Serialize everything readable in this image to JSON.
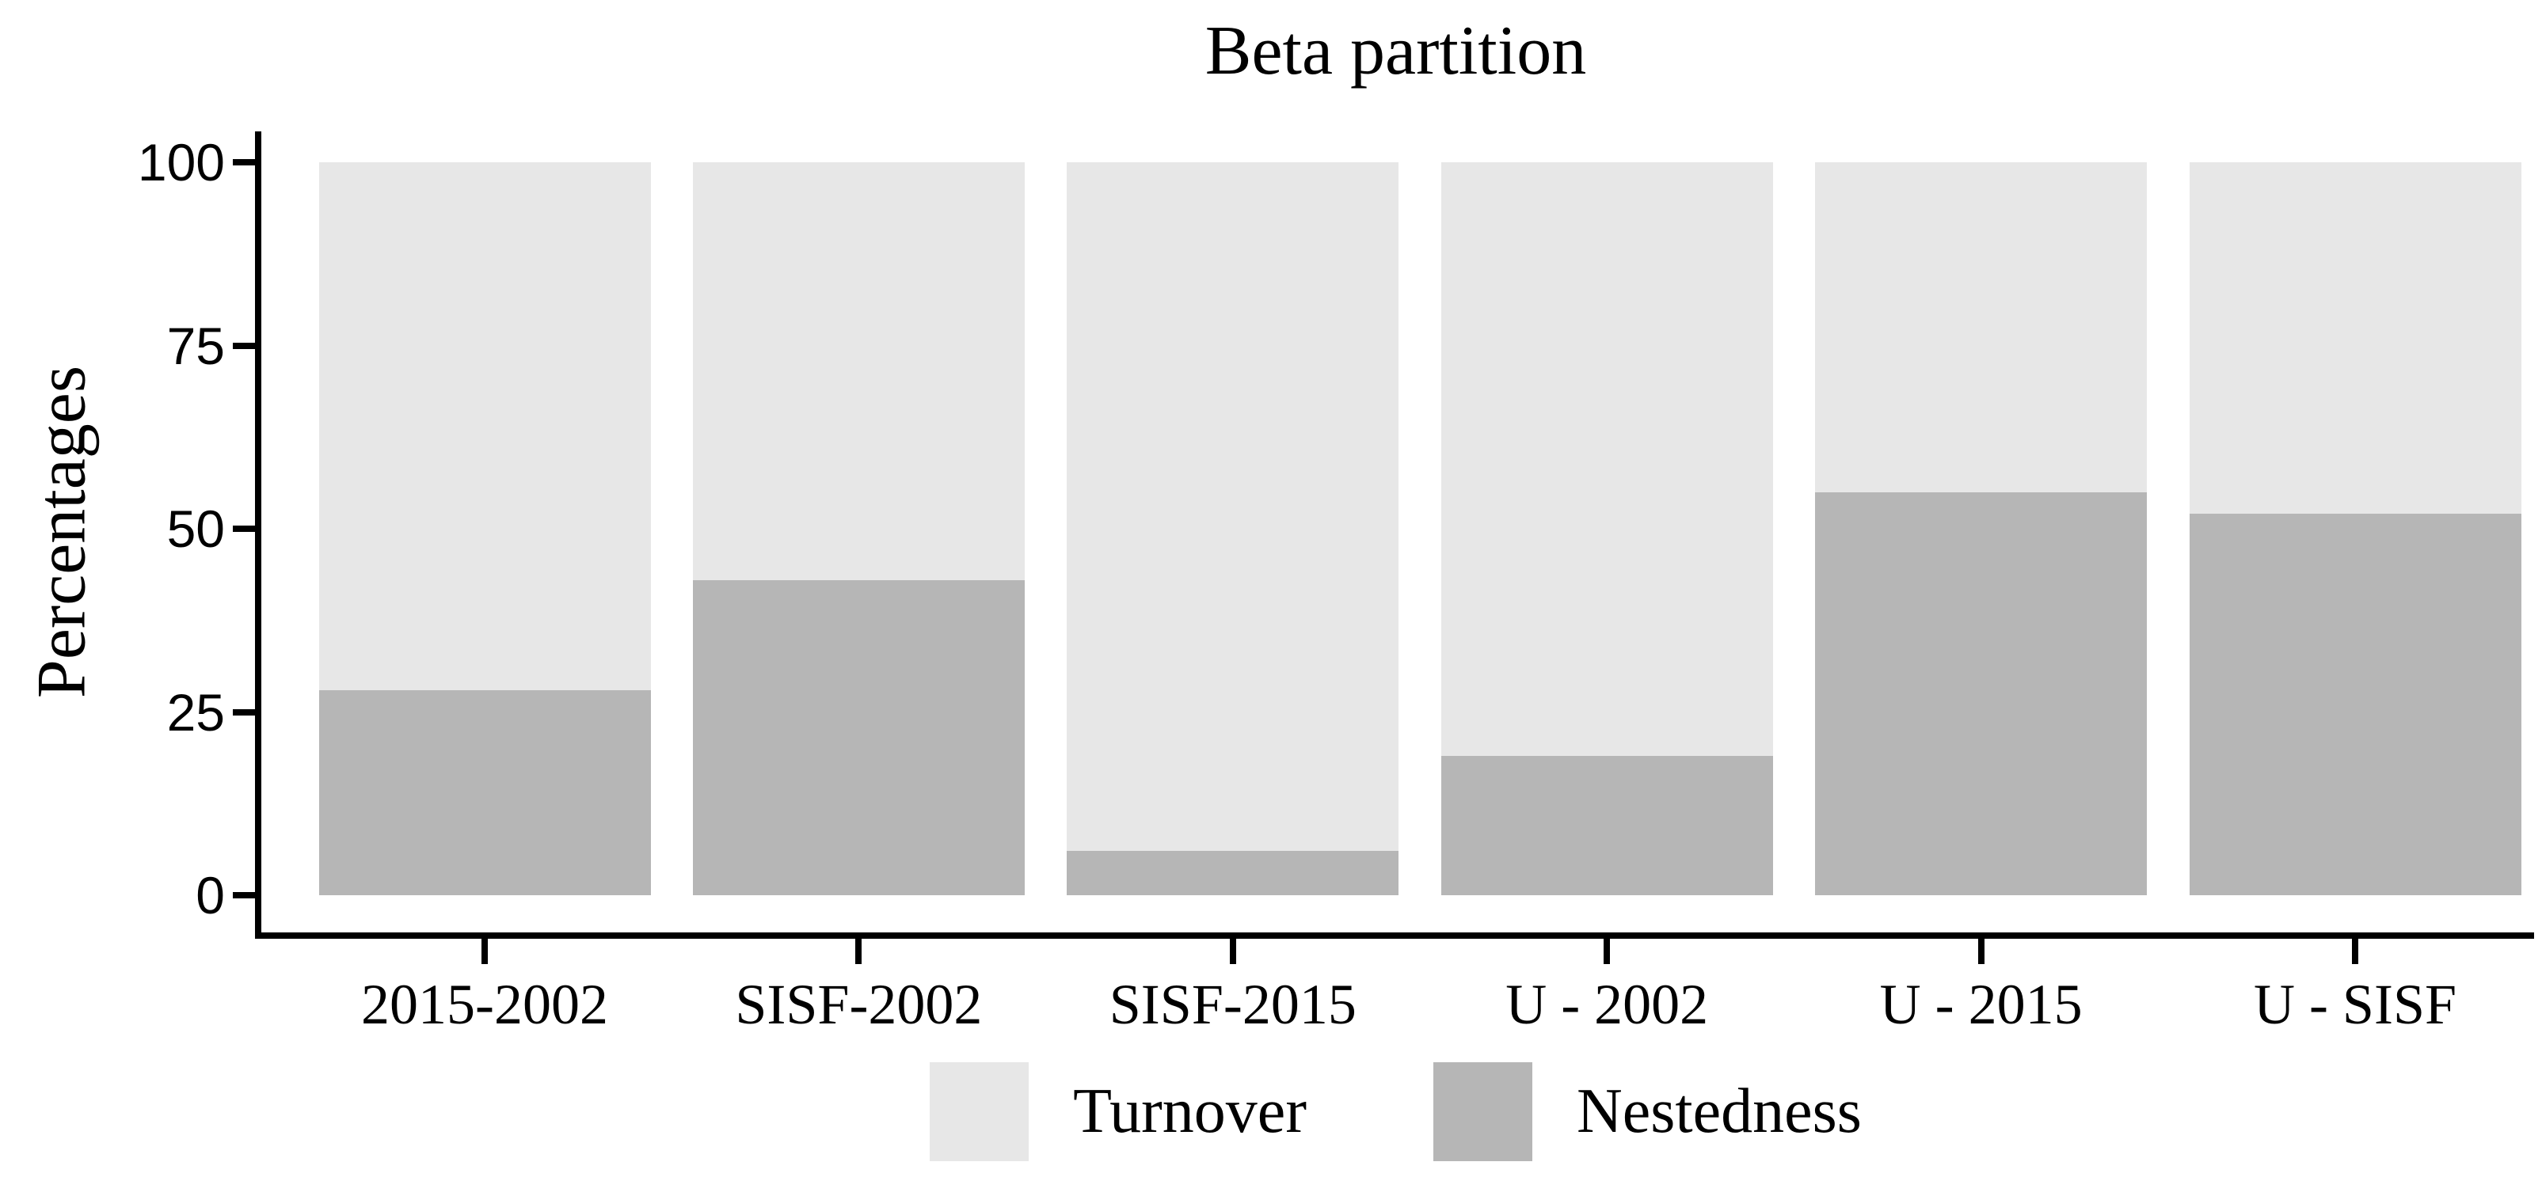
{
  "title": "Beta partition",
  "y_axis": {
    "label": "Percentages",
    "ticks": [
      "0",
      "25",
      "50",
      "75",
      "100"
    ]
  },
  "colors": {
    "turnover": "#e7e7e7",
    "nestedness": "#b6b6b6",
    "axis": "#000000",
    "background": "#ffffff"
  },
  "chart_data": {
    "type": "bar",
    "stacked": true,
    "title": "Beta partition",
    "xlabel": "",
    "ylabel": "Percentages",
    "ylim": [
      0,
      100
    ],
    "yticks": [
      0,
      25,
      50,
      75,
      100
    ],
    "grid": false,
    "legend_position": "bottom",
    "categories": [
      "2015-2002",
      "SISF-2002",
      "SISF-2015",
      "U - 2002",
      "U - 2015",
      "U - SISF"
    ],
    "series": [
      {
        "name": "Turnover",
        "color": "#e7e7e7",
        "values": [
          72,
          57,
          94,
          81,
          45,
          48
        ]
      },
      {
        "name": "Nestedness",
        "color": "#b6b6b6",
        "values": [
          28,
          43,
          6,
          19,
          55,
          52
        ]
      }
    ]
  }
}
